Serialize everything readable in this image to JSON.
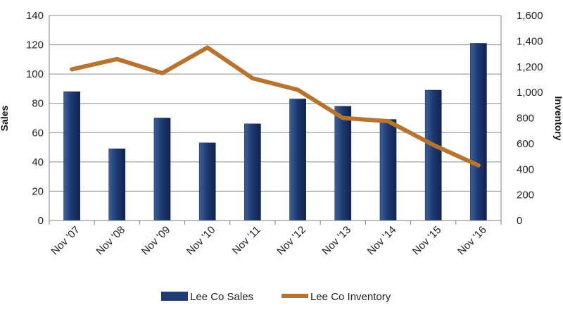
{
  "chart_data": {
    "type": "bar",
    "categories": [
      "Nov '07",
      "Nov '08",
      "Nov '09",
      "Nov '10",
      "Nov '11",
      "Nov '12",
      "Nov '13",
      "Nov '14",
      "Nov '15",
      "Nov '16"
    ],
    "series": [
      {
        "name": "Lee Co Sales",
        "type": "bar",
        "axis": "left",
        "color": "#1f3b73",
        "values": [
          88,
          49,
          70,
          53,
          66,
          83,
          78,
          69,
          89,
          121
        ]
      },
      {
        "name": "Lee Co Inventory",
        "type": "line",
        "axis": "right",
        "color": "#b8732e",
        "values": [
          1180,
          1260,
          1150,
          1350,
          1110,
          1020,
          800,
          775,
          590,
          430
        ]
      }
    ],
    "ylabel": "Sales",
    "y2label": "Inventory",
    "ylim": [
      0,
      140
    ],
    "y2lim": [
      0,
      1600
    ],
    "yticks": [
      "0",
      "20",
      "40",
      "60",
      "80",
      "100",
      "120",
      "140"
    ],
    "y2ticks": [
      "0",
      "200",
      "400",
      "600",
      "800",
      "1,000",
      "1,200",
      "1,400",
      "1,600"
    ],
    "grid": true,
    "legend_position": "bottom"
  }
}
